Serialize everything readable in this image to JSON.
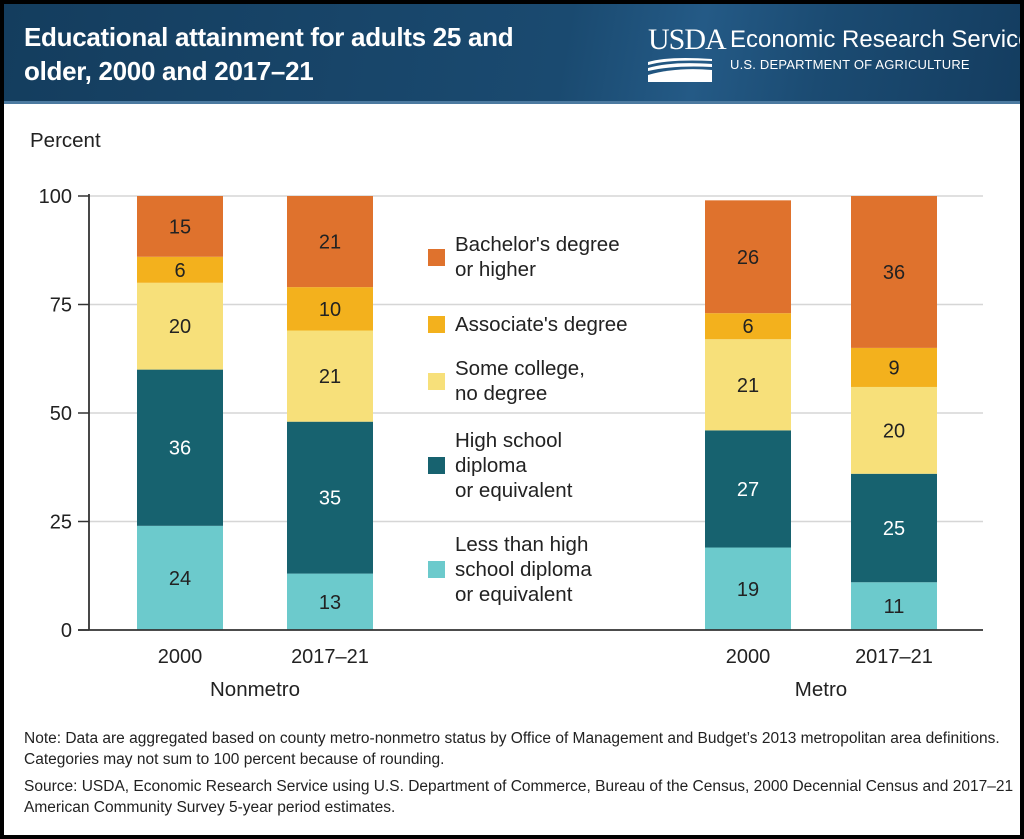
{
  "header": {
    "title": "Educational attainment for adults 25 and older, 2000 and 2017–21",
    "logo_mark": "USDA",
    "agency_name": "Economic Research Service",
    "department": "U.S. DEPARTMENT OF AGRICULTURE"
  },
  "footer": {
    "note": "Note: Data are aggregated based on county metro-nonmetro status by Office of Management and Budget’s 2013 metropolitan area definitions. Categories may not sum to 100 percent because of rounding.",
    "source": "Source: USDA, Economic Research Service using U.S. Department of Commerce, Bureau of the Census, 2000 Decennial Census and 2017–21 American Community Survey 5-year period estimates."
  },
  "chart_data": {
    "type": "bar",
    "stacked": true,
    "title": "Educational attainment for adults 25 and older, 2000 and 2017–21",
    "ylabel": "Percent",
    "xlabel": "",
    "ylim": [
      0,
      100
    ],
    "yticks": [
      0,
      25,
      50,
      75,
      100
    ],
    "grid": true,
    "legend_position": "center",
    "groups": [
      "Nonmetro",
      "Metro"
    ],
    "categories": [
      "2000",
      "2017–21",
      "2000",
      "2017–21"
    ],
    "category_groups": [
      "Nonmetro",
      "Nonmetro",
      "Metro",
      "Metro"
    ],
    "series": [
      {
        "name": "Less than high school diploma or equivalent",
        "legend_label": "Less than high\nschool diploma\nor equivalent",
        "color": "#6ccacc",
        "label_color": "#222222",
        "values": [
          24,
          13,
          19,
          11
        ]
      },
      {
        "name": "High school diploma or equivalent",
        "legend_label": "High school\ndiploma\nor equivalent",
        "color": "#17626f",
        "label_color": "#ffffff",
        "values": [
          36,
          35,
          27,
          25
        ]
      },
      {
        "name": "Some college, no degree",
        "legend_label": "Some college,\nno degree",
        "color": "#f7e07a",
        "label_color": "#222222",
        "values": [
          20,
          21,
          21,
          20
        ]
      },
      {
        "name": "Associate's degree",
        "legend_label": "Associate's degree",
        "color": "#f3b11d",
        "label_color": "#222222",
        "values": [
          6,
          10,
          6,
          9
        ]
      },
      {
        "name": "Bachelor's degree or higher",
        "legend_label": "Bachelor's degree\nor higher",
        "color": "#df722d",
        "label_color": "#222222",
        "values": [
          15,
          21,
          26,
          36
        ]
      }
    ]
  }
}
